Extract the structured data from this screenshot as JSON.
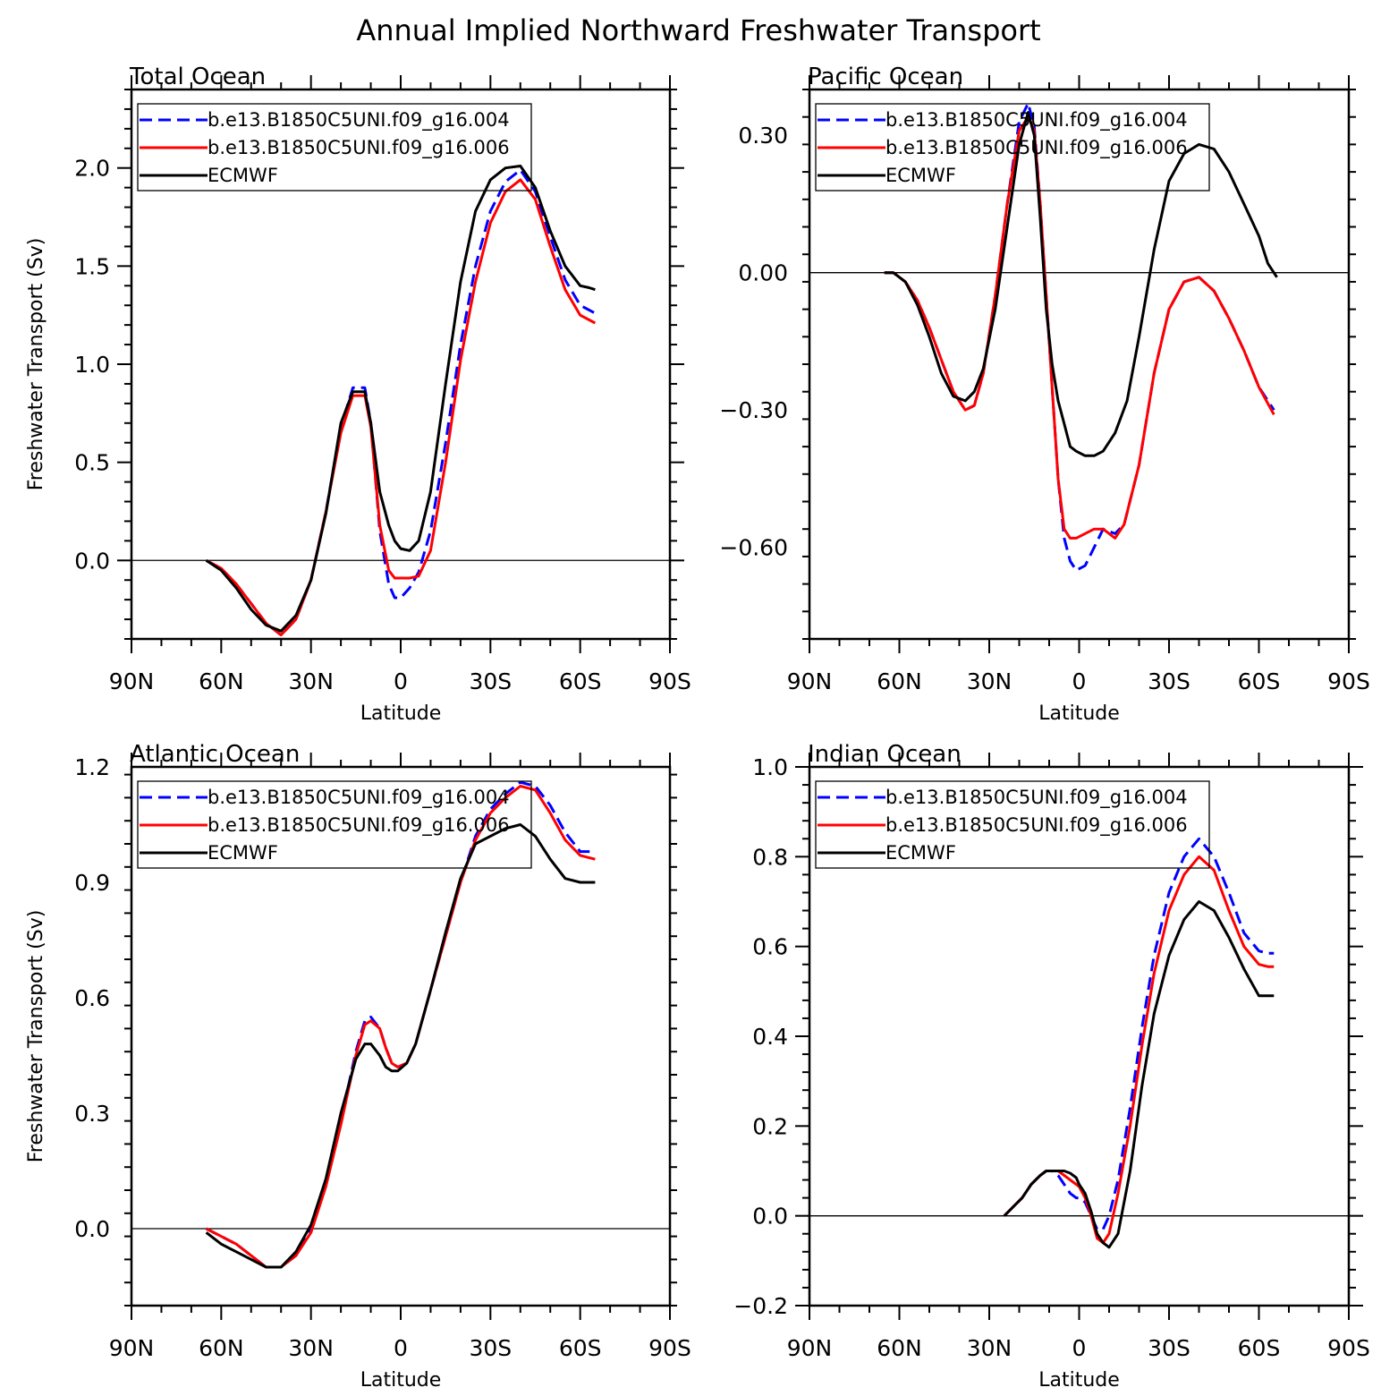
{
  "figure_title": "Annual Implied Northward Freshwater Transport",
  "colors": {
    "run004": "#0000ff",
    "run006": "#ff0000",
    "obs": "#000000"
  },
  "legend_entries": [
    "b.e13.B1850C5UNI.f09_g16.004",
    "b.e13.B1850C5UNI.f09_g16.006",
    "ECMWF"
  ],
  "chart_data": [
    {
      "type": "line",
      "title": "Total Ocean",
      "xlabel": "Latitude",
      "ylabel": "Freshwater Transport (Sv)",
      "xlim": [
        90,
        -90
      ],
      "ylim": [
        -0.4,
        2.4
      ],
      "yticks": [
        "0.0",
        "0.5",
        "1.0",
        "1.5",
        "2.0"
      ],
      "ytick_values": [
        0,
        0.5,
        1.0,
        1.5,
        2.0
      ],
      "xticks": [
        "90N",
        "60N",
        "30N",
        "0",
        "30S",
        "60S",
        "90S"
      ],
      "series": [
        {
          "name": "b.e13.B1850C5UNI.f09_g16.004",
          "style": "dashed",
          "x": [
            65,
            60,
            55,
            50,
            45,
            40,
            35,
            30,
            25,
            20,
            16,
            12,
            10,
            7,
            4,
            2,
            0,
            -3,
            -6,
            -10,
            -15,
            -20,
            -25,
            -30,
            -35,
            -40,
            -45,
            -50,
            -55,
            -60,
            -65
          ],
          "y": [
            0,
            -0.04,
            -0.12,
            -0.22,
            -0.32,
            -0.38,
            -0.3,
            -0.1,
            0.25,
            0.68,
            0.88,
            0.88,
            0.7,
            0.15,
            -0.12,
            -0.19,
            -0.19,
            -0.14,
            -0.06,
            0.15,
            0.6,
            1.1,
            1.5,
            1.78,
            1.93,
            1.99,
            1.88,
            1.65,
            1.43,
            1.3,
            1.26
          ]
        },
        {
          "name": "b.e13.B1850C5UNI.f09_g16.006",
          "style": "solid",
          "x": [
            65,
            60,
            55,
            50,
            45,
            40,
            35,
            30,
            25,
            20,
            16,
            12,
            10,
            7,
            4,
            2,
            0,
            -3,
            -6,
            -10,
            -15,
            -20,
            -25,
            -30,
            -35,
            -40,
            -45,
            -50,
            -55,
            -60,
            -65
          ],
          "y": [
            0,
            -0.04,
            -0.12,
            -0.22,
            -0.32,
            -0.38,
            -0.3,
            -0.1,
            0.25,
            0.65,
            0.84,
            0.84,
            0.68,
            0.18,
            -0.05,
            -0.09,
            -0.09,
            -0.09,
            -0.08,
            0.05,
            0.5,
            1.02,
            1.42,
            1.72,
            1.88,
            1.94,
            1.84,
            1.6,
            1.38,
            1.25,
            1.21
          ]
        },
        {
          "name": "ECMWF",
          "style": "solid",
          "x": [
            65,
            60,
            55,
            50,
            45,
            40,
            35,
            30,
            25,
            20,
            16,
            12,
            10,
            7,
            4,
            2,
            0,
            -3,
            -6,
            -10,
            -15,
            -20,
            -25,
            -30,
            -35,
            -40,
            -45,
            -50,
            -55,
            -60,
            -63,
            -65
          ],
          "y": [
            0,
            -0.05,
            -0.14,
            -0.25,
            -0.33,
            -0.36,
            -0.28,
            -0.1,
            0.24,
            0.7,
            0.86,
            0.86,
            0.7,
            0.35,
            0.18,
            0.1,
            0.06,
            0.05,
            0.1,
            0.35,
            0.9,
            1.42,
            1.78,
            1.94,
            2.0,
            2.01,
            1.9,
            1.68,
            1.5,
            1.4,
            1.39,
            1.38
          ]
        }
      ]
    },
    {
      "type": "line",
      "title": "Pacific Ocean",
      "xlabel": "Latitude",
      "ylabel": "",
      "xlim": [
        90,
        -90
      ],
      "ylim": [
        -0.8,
        0.4
      ],
      "yticks": [
        "0.30",
        "0.00",
        "−0.30",
        "−0.60"
      ],
      "ytick_values": [
        0.3,
        0,
        -0.3,
        -0.6
      ],
      "xticks": [
        "90N",
        "60N",
        "30N",
        "0",
        "30S",
        "60S",
        "90S"
      ],
      "series": [
        {
          "name": "b.e13.B1850C5UNI.f09_g16.004",
          "style": "dashed",
          "x": [
            65,
            62,
            58,
            54,
            50,
            46,
            42,
            38,
            35,
            32,
            28,
            24,
            20,
            17,
            15,
            13,
            11,
            9,
            7,
            5,
            3,
            1,
            -2,
            -5,
            -8,
            -12,
            -15,
            -20,
            -25,
            -30,
            -35,
            -40,
            -45,
            -50,
            -55,
            -60,
            -65
          ],
          "y": [
            0,
            0,
            -0.02,
            -0.06,
            -0.12,
            -0.19,
            -0.26,
            -0.3,
            -0.29,
            -0.22,
            -0.05,
            0.15,
            0.33,
            0.37,
            0.32,
            0.15,
            -0.05,
            -0.25,
            -0.45,
            -0.58,
            -0.63,
            -0.65,
            -0.64,
            -0.6,
            -0.56,
            -0.57,
            -0.55,
            -0.42,
            -0.22,
            -0.08,
            -0.02,
            -0.01,
            -0.04,
            -0.1,
            -0.17,
            -0.25,
            -0.3
          ]
        },
        {
          "name": "b.e13.B1850C5UNI.f09_g16.006",
          "style": "solid",
          "x": [
            65,
            62,
            58,
            54,
            50,
            46,
            42,
            38,
            35,
            32,
            28,
            24,
            20,
            17,
            15,
            13,
            11,
            9,
            7,
            5,
            3,
            1,
            -2,
            -5,
            -8,
            -12,
            -15,
            -20,
            -25,
            -30,
            -35,
            -40,
            -45,
            -50,
            -55,
            -60,
            -65
          ],
          "y": [
            0,
            0,
            -0.02,
            -0.06,
            -0.12,
            -0.19,
            -0.26,
            -0.3,
            -0.29,
            -0.22,
            -0.05,
            0.15,
            0.31,
            0.34,
            0.31,
            0.15,
            -0.05,
            -0.25,
            -0.45,
            -0.56,
            -0.58,
            -0.58,
            -0.57,
            -0.56,
            -0.56,
            -0.58,
            -0.55,
            -0.42,
            -0.22,
            -0.08,
            -0.02,
            -0.01,
            -0.04,
            -0.1,
            -0.17,
            -0.25,
            -0.31
          ]
        },
        {
          "name": "ECMWF",
          "style": "solid",
          "x": [
            65,
            62,
            58,
            54,
            50,
            46,
            42,
            38,
            35,
            32,
            28,
            24,
            20,
            17,
            15,
            13,
            11,
            9,
            7,
            5,
            3,
            1,
            -2,
            -5,
            -8,
            -12,
            -16,
            -20,
            -25,
            -30,
            -35,
            -40,
            -45,
            -50,
            -55,
            -60,
            -63,
            -66
          ],
          "y": [
            0,
            0,
            -0.02,
            -0.07,
            -0.14,
            -0.22,
            -0.27,
            -0.28,
            -0.26,
            -0.21,
            -0.08,
            0.1,
            0.28,
            0.35,
            0.3,
            0.12,
            -0.08,
            -0.2,
            -0.28,
            -0.33,
            -0.38,
            -0.39,
            -0.4,
            -0.4,
            -0.39,
            -0.35,
            -0.28,
            -0.14,
            0.05,
            0.2,
            0.26,
            0.28,
            0.27,
            0.22,
            0.15,
            0.08,
            0.02,
            -0.01
          ]
        }
      ]
    },
    {
      "type": "line",
      "title": "Atlantic Ocean",
      "xlabel": "Latitude",
      "ylabel": "Freshwater Transport (Sv)",
      "xlim": [
        90,
        -90
      ],
      "ylim": [
        -0.2,
        1.2
      ],
      "yticks": [
        "0.0",
        "0.3",
        "0.6",
        "0.9",
        "1.2"
      ],
      "ytick_values": [
        0,
        0.3,
        0.6,
        0.9,
        1.2
      ],
      "xticks": [
        "90N",
        "60N",
        "30N",
        "0",
        "30S",
        "60S",
        "90S"
      ],
      "series": [
        {
          "name": "b.e13.B1850C5UNI.f09_g16.004",
          "style": "dashed",
          "x": [
            65,
            60,
            55,
            50,
            45,
            40,
            35,
            30,
            25,
            20,
            15,
            12,
            10,
            7,
            5,
            3,
            1,
            -2,
            -5,
            -10,
            -15,
            -20,
            -25,
            -30,
            -35,
            -40,
            -45,
            -50,
            -55,
            -60,
            -65
          ],
          "y": [
            0,
            -0.02,
            -0.04,
            -0.07,
            -0.1,
            -0.1,
            -0.07,
            0,
            0.12,
            0.28,
            0.46,
            0.54,
            0.55,
            0.52,
            0.47,
            0.43,
            0.42,
            0.43,
            0.48,
            0.62,
            0.76,
            0.9,
            1.02,
            1.09,
            1.13,
            1.16,
            1.15,
            1.1,
            1.03,
            0.98,
            0.98
          ]
        },
        {
          "name": "b.e13.B1850C5UNI.f09_g16.006",
          "style": "solid",
          "x": [
            65,
            60,
            55,
            50,
            45,
            40,
            35,
            30,
            25,
            20,
            15,
            12,
            10,
            7,
            5,
            3,
            1,
            -2,
            -5,
            -10,
            -15,
            -20,
            -25,
            -30,
            -35,
            -40,
            -45,
            -50,
            -55,
            -60,
            -65
          ],
          "y": [
            0,
            -0.02,
            -0.04,
            -0.07,
            -0.1,
            -0.1,
            -0.07,
            -0.01,
            0.11,
            0.27,
            0.45,
            0.53,
            0.54,
            0.52,
            0.47,
            0.43,
            0.42,
            0.43,
            0.48,
            0.62,
            0.76,
            0.9,
            1.01,
            1.08,
            1.12,
            1.15,
            1.14,
            1.08,
            1.01,
            0.97,
            0.96
          ]
        },
        {
          "name": "ECMWF",
          "style": "solid",
          "x": [
            65,
            60,
            55,
            50,
            45,
            40,
            35,
            30,
            25,
            20,
            15,
            12,
            10,
            7,
            5,
            3,
            1,
            -2,
            -5,
            -10,
            -15,
            -20,
            -25,
            -30,
            -35,
            -40,
            -45,
            -50,
            -55,
            -60,
            -65
          ],
          "y": [
            -0.01,
            -0.04,
            -0.06,
            -0.08,
            -0.1,
            -0.1,
            -0.06,
            0.01,
            0.13,
            0.3,
            0.44,
            0.48,
            0.48,
            0.45,
            0.42,
            0.41,
            0.41,
            0.43,
            0.48,
            0.62,
            0.77,
            0.91,
            1.0,
            1.02,
            1.04,
            1.05,
            1.02,
            0.96,
            0.91,
            0.9,
            0.9
          ]
        }
      ]
    },
    {
      "type": "line",
      "title": "Indian Ocean",
      "xlabel": "Latitude",
      "ylabel": "",
      "xlim": [
        90,
        -90
      ],
      "ylim": [
        -0.2,
        1.0
      ],
      "yticks": [
        "1.0",
        "0.8",
        "0.6",
        "0.4",
        "0.2",
        "0.0",
        "−0.2"
      ],
      "ytick_values": [
        1.0,
        0.8,
        0.6,
        0.4,
        0.2,
        0,
        -0.2
      ],
      "xticks": [
        "90N",
        "60N",
        "30N",
        "0",
        "30S",
        "60S",
        "90S"
      ],
      "series": [
        {
          "name": "b.e13.B1850C5UNI.f09_g16.004",
          "style": "dashed",
          "x": [
            25,
            22,
            19,
            16,
            13,
            11,
            9,
            7,
            5,
            3,
            1,
            0,
            -2,
            -4,
            -6,
            -8,
            -10,
            -13,
            -17,
            -21,
            -25,
            -30,
            -35,
            -40,
            -45,
            -50,
            -55,
            -60,
            -63,
            -65
          ],
          "y": [
            0,
            0.02,
            0.04,
            0.07,
            0.09,
            0.1,
            0.1,
            0.09,
            0.07,
            0.05,
            0.04,
            0.04,
            0.03,
            0.0,
            -0.03,
            -0.03,
            0,
            0.08,
            0.24,
            0.42,
            0.58,
            0.72,
            0.8,
            0.84,
            0.8,
            0.72,
            0.63,
            0.59,
            0.585,
            0.585
          ]
        },
        {
          "name": "b.e13.B1850C5UNI.f09_g16.006",
          "style": "solid",
          "x": [
            25,
            22,
            19,
            16,
            13,
            11,
            9,
            7,
            5,
            3,
            1,
            0,
            -2,
            -4,
            -6,
            -8,
            -10,
            -13,
            -17,
            -21,
            -25,
            -30,
            -35,
            -40,
            -45,
            -50,
            -55,
            -60,
            -63,
            -65
          ],
          "y": [
            0,
            0.02,
            0.04,
            0.07,
            0.09,
            0.1,
            0.1,
            0.1,
            0.09,
            0.08,
            0.07,
            0.065,
            0.04,
            0.0,
            -0.05,
            -0.06,
            -0.04,
            0.05,
            0.2,
            0.38,
            0.54,
            0.68,
            0.76,
            0.8,
            0.77,
            0.68,
            0.6,
            0.56,
            0.555,
            0.555
          ]
        },
        {
          "name": "ECMWF",
          "style": "solid",
          "x": [
            25,
            22,
            19,
            16,
            13,
            11,
            9,
            7,
            5,
            3,
            1,
            0,
            -2,
            -4,
            -6,
            -8,
            -10,
            -13,
            -17,
            -21,
            -25,
            -30,
            -35,
            -40,
            -45,
            -50,
            -55,
            -60,
            -63,
            -65
          ],
          "y": [
            0,
            0.02,
            0.04,
            0.07,
            0.09,
            0.1,
            0.1,
            0.1,
            0.1,
            0.095,
            0.085,
            0.07,
            0.05,
            0.01,
            -0.04,
            -0.06,
            -0.07,
            -0.04,
            0.1,
            0.29,
            0.45,
            0.58,
            0.66,
            0.7,
            0.68,
            0.62,
            0.55,
            0.49,
            0.49,
            0.49
          ]
        }
      ]
    }
  ]
}
